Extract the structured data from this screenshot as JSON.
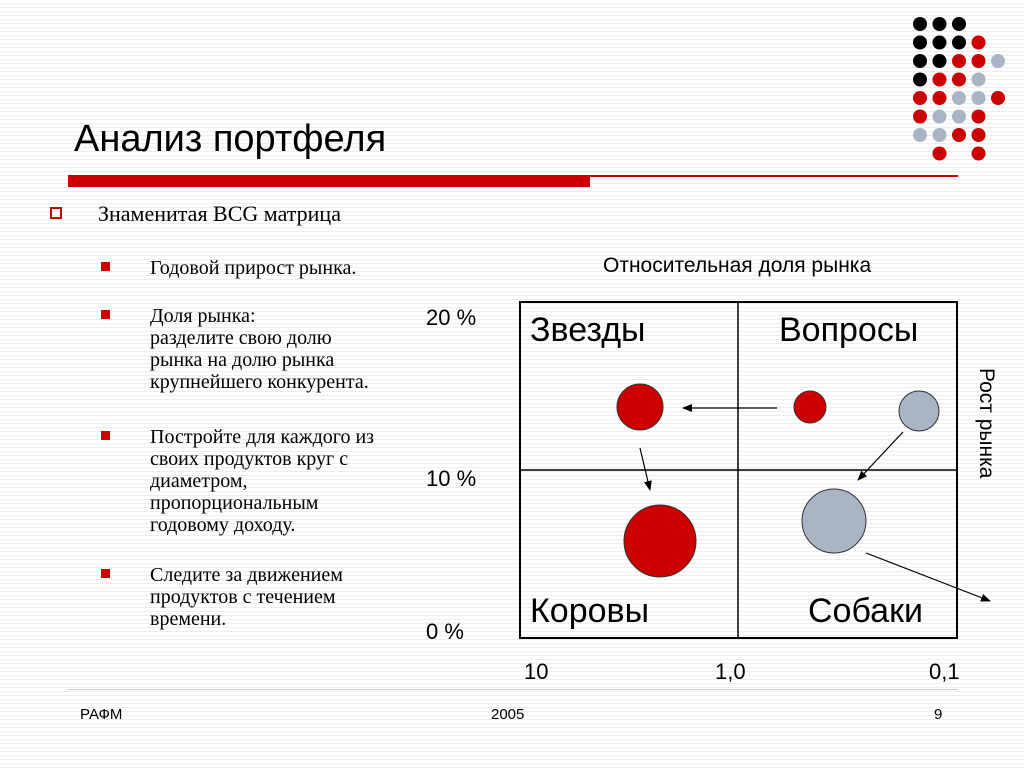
{
  "slide": {
    "title": "Анализ портфеля",
    "main_bullet": "Знаменитая BCG матрица",
    "sub_bullets": [
      "Годовой прирост рынка.",
      "Доля рынка:\nразделите свою долю\nрынка на долю рынка\nкрупнейшего конкурента.",
      "Постройте для каждого из\nсвоих продуктов круг с\nдиаметром,\nпропорциональным\nгодовому доходу.",
      "Следите за движением\nпродуктов с течением\nвремени."
    ]
  },
  "matrix": {
    "x_axis_title": "Относительная доля рынка",
    "y_axis_title": "Рост рынка",
    "y_ticks": [
      "20 %",
      "10 %",
      "0 %"
    ],
    "x_ticks": [
      "10",
      "1,0",
      "0,1"
    ],
    "quadrants": {
      "top_left": "Звезды",
      "top_right": "Вопросы",
      "bottom_left": "Коровы",
      "bottom_right": "Собаки"
    },
    "colors": {
      "red": "#cc0000",
      "gray": "#a9b5c4",
      "dark": "#000000"
    }
  },
  "footer": {
    "left": "РАФМ",
    "center": "2005",
    "right": "9"
  }
}
